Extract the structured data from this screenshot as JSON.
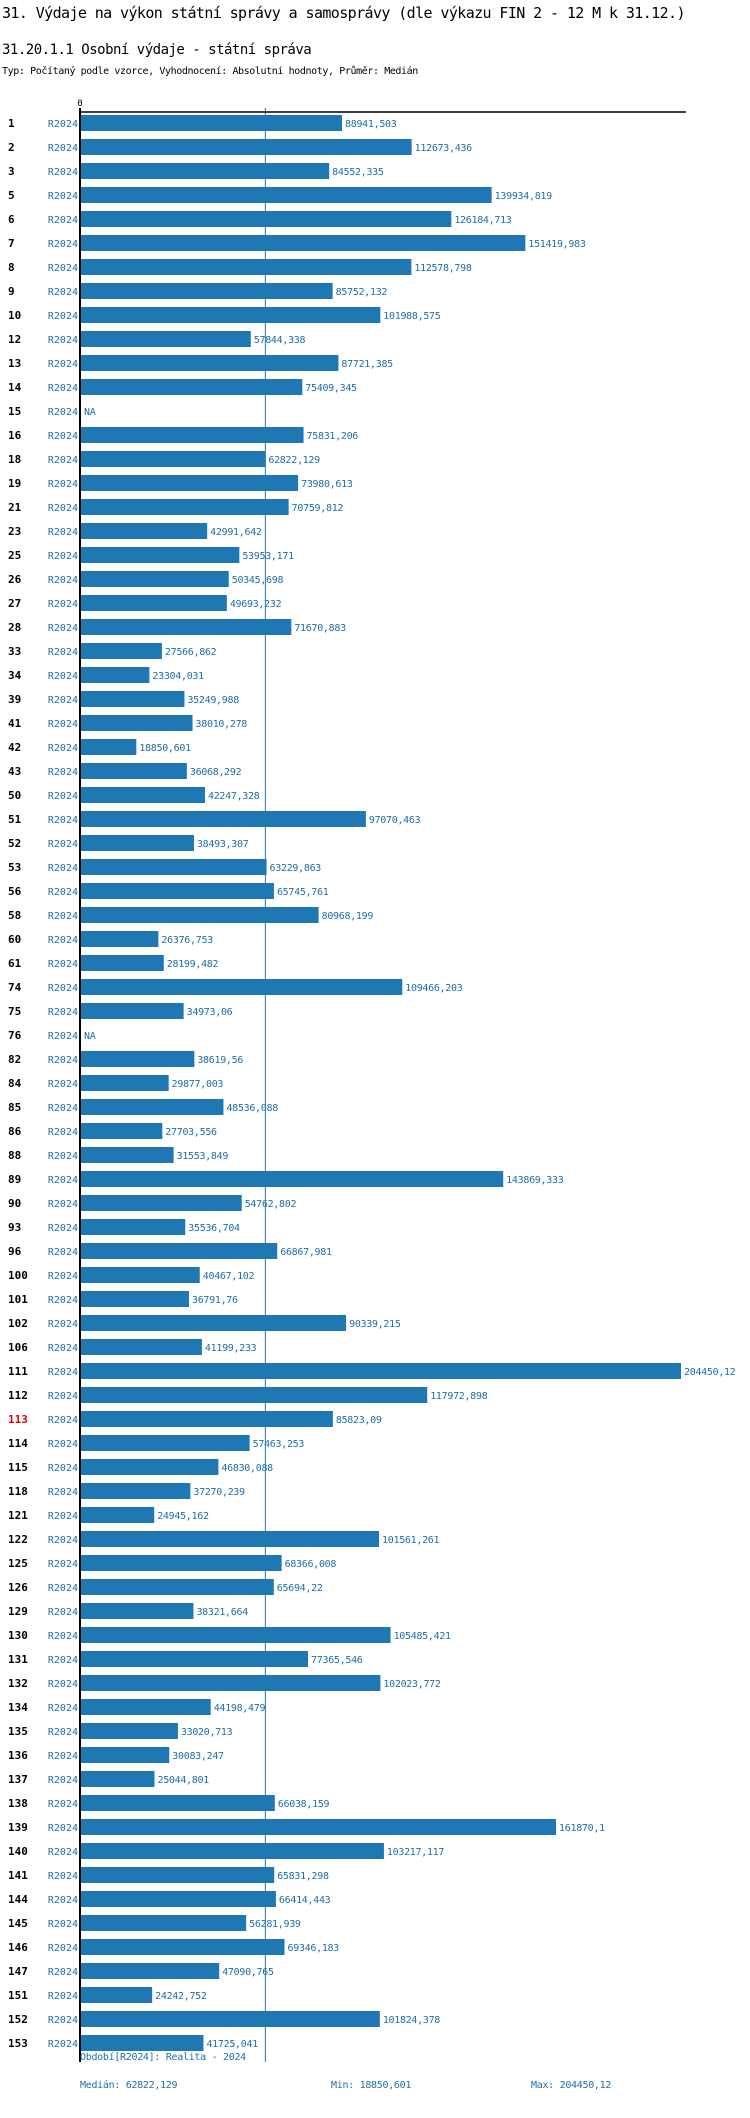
{
  "page": {
    "title": "31. Výdaje na výkon státní správy a samosprávy (dle výkazu FIN 2 - 12 M k 31.12.)",
    "subtitle": "31.20.1.1 Osobní výdaje - státní správa",
    "meta": "Typ: Počítaný podle vzorce, Vyhodnocení: Absolutní hodnoty, Průměr: Medián"
  },
  "colors": {
    "bar": "#1f77b4",
    "label": "#1f6ea8",
    "highlight": "#e00000",
    "axis": "#000000"
  },
  "chart_data": {
    "type": "bar",
    "orientation": "horizontal",
    "title": "31.20.1.1 Osobní výdaje - státní správa",
    "xlabel": "",
    "ylabel": "",
    "x_tick_labels": [
      "0"
    ],
    "xlim": [
      0,
      204450.12
    ],
    "reference_line": {
      "label": "Medián",
      "value": 62822.129
    },
    "highlighted_category": "113",
    "series_label": "R2024",
    "categories": [
      "1",
      "2",
      "3",
      "5",
      "6",
      "7",
      "8",
      "9",
      "10",
      "12",
      "13",
      "14",
      "15",
      "16",
      "18",
      "19",
      "21",
      "23",
      "25",
      "26",
      "27",
      "28",
      "33",
      "34",
      "39",
      "41",
      "42",
      "43",
      "50",
      "51",
      "52",
      "53",
      "56",
      "58",
      "60",
      "61",
      "74",
      "75",
      "76",
      "82",
      "84",
      "85",
      "86",
      "88",
      "89",
      "90",
      "93",
      "96",
      "100",
      "101",
      "102",
      "106",
      "111",
      "112",
      "113",
      "114",
      "115",
      "118",
      "121",
      "122",
      "125",
      "126",
      "129",
      "130",
      "131",
      "132",
      "134",
      "135",
      "136",
      "137",
      "138",
      "139",
      "140",
      "141",
      "144",
      "145",
      "146",
      "147",
      "151",
      "152",
      "153"
    ],
    "values": [
      88941.503,
      112673.436,
      84552.335,
      139934.819,
      126184.713,
      151419.983,
      112578.798,
      85752.132,
      101988.575,
      57844.338,
      87721.385,
      75409.345,
      null,
      75831.206,
      62822.129,
      73980.613,
      70759.812,
      42991.642,
      53953.171,
      50345.698,
      49693.232,
      71670.883,
      27566.862,
      23304.031,
      35249.988,
      38010.278,
      18850.601,
      36068.292,
      42247.328,
      97070.463,
      38493.307,
      63229.863,
      65745.761,
      80968.199,
      26376.753,
      28199.482,
      109466.203,
      34973.06,
      null,
      38619.56,
      29877.003,
      48536.088,
      27703.556,
      31553.849,
      143869.333,
      54762.802,
      35536.704,
      66867.981,
      40467.102,
      36791.76,
      90339.215,
      41199.233,
      204450.12,
      117972.898,
      85823.09,
      57463.253,
      46830.088,
      37270.239,
      24945.162,
      101561.261,
      68366.008,
      65694.22,
      38321.664,
      105485.421,
      77365.546,
      102023.772,
      44198.479,
      33020.713,
      30083.247,
      25044.801,
      66038.159,
      161870.1,
      103217.117,
      65831.298,
      66414.443,
      56281.939,
      69346.183,
      47090.765,
      24242.752,
      101824.378,
      41725.041
    ],
    "value_labels": [
      "88941,503",
      "112673,436",
      "84552,335",
      "139934,819",
      "126184,713",
      "151419,983",
      "112578,798",
      "85752,132",
      "101988,575",
      "57844,338",
      "87721,385",
      "75409,345",
      "NA",
      "75831,206",
      "62822,129",
      "73980,613",
      "70759,812",
      "42991,642",
      "53953,171",
      "50345,698",
      "49693,232",
      "71670,883",
      "27566,862",
      "23304,031",
      "35249,988",
      "38010,278",
      "18850,601",
      "36068,292",
      "42247,328",
      "97070,463",
      "38493,307",
      "63229,863",
      "65745,761",
      "80968,199",
      "26376,753",
      "28199,482",
      "109466,203",
      "34973,06",
      "NA",
      "38619,56",
      "29877,003",
      "48536,088",
      "27703,556",
      "31553,849",
      "143869,333",
      "54762,802",
      "35536,704",
      "66867,981",
      "40467,102",
      "36791,76",
      "90339,215",
      "41199,233",
      "204450,12",
      "117972,898",
      "85823,09",
      "57463,253",
      "46830,088",
      "37270,239",
      "24945,162",
      "101561,261",
      "68366,008",
      "65694,22",
      "38321,664",
      "105485,421",
      "77365,546",
      "102023,772",
      "44198,479",
      "33020,713",
      "30083,247",
      "25044,801",
      "66038,159",
      "161870,1",
      "103217,117",
      "65831,298",
      "66414,443",
      "56281,939",
      "69346,183",
      "47090,765",
      "24242,752",
      "101824,378",
      "41725,041"
    ]
  },
  "footer": {
    "period": "Období[R2024]: Realita - 2024",
    "median": "Medián: 62822,129",
    "min": "Min: 18850,601",
    "max": "Max: 204450,12"
  }
}
